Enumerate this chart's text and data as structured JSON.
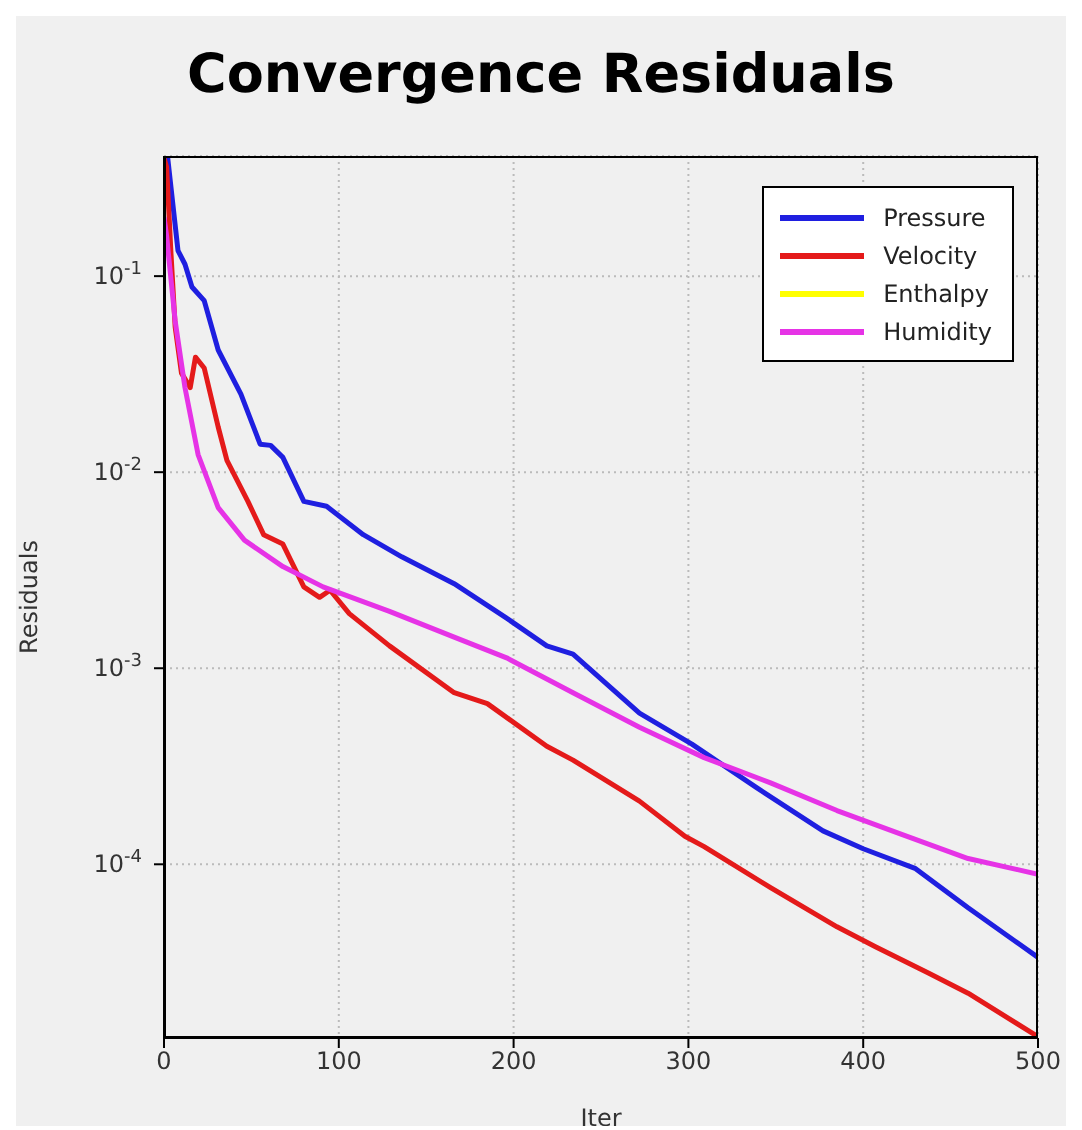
{
  "chart_data": {
    "type": "line",
    "title": "Convergence Residuals",
    "xlabel": "Iter",
    "ylabel": "Residuals",
    "xlim": [
      0,
      500
    ],
    "xticks": [
      0,
      100,
      200,
      300,
      400,
      500
    ],
    "ylim": [
      1.3e-05,
      0.41
    ],
    "yticks": [
      {
        "value": 0.0001,
        "label": "10$^{-4}$"
      },
      {
        "value": 0.001,
        "label": "10$^{-3}$"
      },
      {
        "value": 0.01,
        "label": "10$^{-2}$"
      },
      {
        "value": 0.1,
        "label": "10$^{-1}$"
      }
    ],
    "log": "y",
    "grid": true,
    "legend": "top right",
    "line_style": "solid",
    "marker": "none",
    "series": [
      {
        "name": "Pressure",
        "color": "#1f1fe0",
        "x": [
          0,
          2,
          8,
          12,
          16,
          23,
          31,
          44,
          55,
          61,
          68,
          80,
          93,
          114,
          136,
          166,
          196,
          219,
          234,
          272,
          302,
          339,
          377,
          400,
          430,
          460,
          500
        ],
        "values": [
          0.4,
          0.41,
          0.135,
          0.115,
          0.088,
          0.075,
          0.042,
          0.025,
          0.0139,
          0.0137,
          0.0119,
          0.0071,
          0.0067,
          0.0048,
          0.0037,
          0.0027,
          0.0018,
          0.0013,
          0.00118,
          0.00059,
          0.00041,
          0.000246,
          0.000148,
          0.00012,
          9.5e-05,
          6e-05,
          3.35e-05
        ]
      },
      {
        "name": "Velocity",
        "color": "#e41a1a",
        "x": [
          0,
          1.5,
          4,
          6.4,
          10,
          15,
          18,
          23,
          31,
          36,
          48,
          57,
          68,
          80,
          89,
          95,
          106,
          129,
          166,
          185,
          219,
          234,
          272,
          298,
          309,
          347,
          385,
          407,
          437,
          460,
          500
        ],
        "values": [
          0.4,
          0.36,
          0.13,
          0.055,
          0.032,
          0.027,
          0.0386,
          0.034,
          0.017,
          0.0115,
          0.0071,
          0.0048,
          0.0043,
          0.0026,
          0.0023,
          0.0025,
          0.0019,
          0.0013,
          0.00075,
          0.00066,
          0.0004,
          0.00034,
          0.00021,
          0.000139,
          0.000123,
          7.6e-05,
          4.8e-05,
          3.8e-05,
          2.8e-05,
          2.2e-05,
          1.32e-05
        ]
      },
      {
        "name": "Enthalpy",
        "color": "#ffff00"
      },
      {
        "name": "Humidity",
        "color": "#e633e6",
        "x": [
          0,
          1.5,
          6.4,
          12,
          19.5,
          31,
          46,
          68,
          91,
          129,
          166,
          196,
          234,
          272,
          309,
          347,
          385,
          422,
          460,
          500
        ],
        "values": [
          0.2,
          0.16,
          0.059,
          0.027,
          0.0123,
          0.0066,
          0.0045,
          0.0033,
          0.0026,
          0.00195,
          0.00144,
          0.00113,
          0.00075,
          0.0005,
          0.00035,
          0.00026,
          0.000188,
          0.000142,
          0.000107,
          8.9e-05
        ]
      }
    ]
  }
}
